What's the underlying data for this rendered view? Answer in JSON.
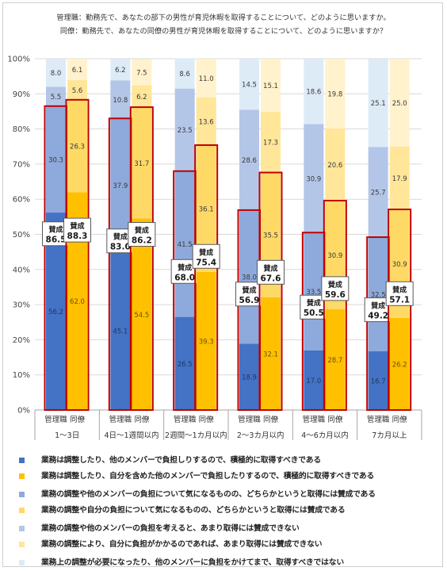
{
  "title_lines": [
    "管理職：勤務先で、あなたの部下の男性が育児休暇を取得することについて、どのように思いますか。",
    "同僚：勤務先で、あなたの同僚の男性が育児休暇を取得することについて、どのように思いますか？"
  ],
  "chart_data": {
    "type": "bar",
    "stacked": true,
    "ylim": [
      0,
      100
    ],
    "yticks": [
      "0%",
      "10%",
      "20%",
      "30%",
      "40%",
      "50%",
      "60%",
      "70%",
      "80%",
      "90%",
      "100%"
    ],
    "groups": [
      "1～3日",
      "4日～1週間以内",
      "2週間～1カ月以内",
      "2～3カ月以内",
      "4～6カ月以内",
      "7カ月以上"
    ],
    "roles": [
      "管理職",
      "同僚"
    ],
    "bars": [
      {
        "group": 0,
        "role": 0,
        "values": [
          56.2,
          30.3,
          5.5,
          8.0
        ],
        "total": "86.5"
      },
      {
        "group": 0,
        "role": 1,
        "values": [
          62.0,
          26.3,
          5.6,
          6.1
        ],
        "total": "88.3"
      },
      {
        "group": 1,
        "role": 0,
        "values": [
          45.1,
          37.9,
          10.8,
          6.2
        ],
        "total": "83.0"
      },
      {
        "group": 1,
        "role": 1,
        "values": [
          54.5,
          31.7,
          6.2,
          7.5
        ],
        "total": "86.2"
      },
      {
        "group": 2,
        "role": 0,
        "values": [
          26.5,
          41.5,
          23.5,
          8.6
        ],
        "total": "68.0"
      },
      {
        "group": 2,
        "role": 1,
        "values": [
          39.3,
          36.1,
          13.6,
          11.0
        ],
        "total": "75.4"
      },
      {
        "group": 3,
        "role": 0,
        "values": [
          18.9,
          38.0,
          28.6,
          14.5
        ],
        "total": "56.9"
      },
      {
        "group": 3,
        "role": 1,
        "values": [
          32.1,
          35.5,
          17.3,
          15.1
        ],
        "total": "67.6"
      },
      {
        "group": 4,
        "role": 0,
        "values": [
          17.0,
          33.5,
          30.9,
          18.6
        ],
        "total": "50.5"
      },
      {
        "group": 4,
        "role": 1,
        "values": [
          28.7,
          30.9,
          20.6,
          19.8
        ],
        "total": "59.6"
      },
      {
        "group": 5,
        "role": 0,
        "values": [
          16.7,
          32.5,
          25.7,
          25.1
        ],
        "total": "49.2"
      },
      {
        "group": 5,
        "role": 1,
        "values": [
          26.2,
          30.9,
          17.9,
          25.0
        ],
        "total": "57.1"
      }
    ],
    "total_label": "賛成",
    "colors": {
      "manager": [
        "#4472C4",
        "#8EA9DB",
        "#B4C6E7",
        "#DDEBF7"
      ],
      "colleague": [
        "#FFC000",
        "#FFD966",
        "#FFE699",
        "#FFF2CC"
      ],
      "outline": "#C00000",
      "grid": "#D9D9D9"
    },
    "legend": [
      {
        "text": "業務は調整したり、他のメンバーで負担しりするので、積極的に取得すべきである",
        "color": "#4472C4"
      },
      {
        "text": "業務は調整したり、自分を含めた他のメンバーで負担したりするので、積極的に取得すべきである",
        "color": "#FFC000"
      },
      {
        "text": "業務の調整や他のメンバーの負担について気になるものの、どちらかというと取得には賛成である",
        "color": "#8EA9DB"
      },
      {
        "text": "業務の調整や自分の負担について気になるものの、どちらかというと取得には賛成である",
        "color": "#FFD966"
      },
      {
        "text": "業務の調整や他のメンバーの負担を考えると、あまり取得には賛成できない",
        "color": "#B4C6E7"
      },
      {
        "text": "業務の調整により、自分に負担がかかるのであれば、あまり取得には賛成できない",
        "color": "#FFE699"
      },
      {
        "text": "業務上の調整が必要になったり、他のメンバーに負担をかけてまで、取得すべきではない",
        "color": "#DDEBF7"
      }
    ]
  }
}
